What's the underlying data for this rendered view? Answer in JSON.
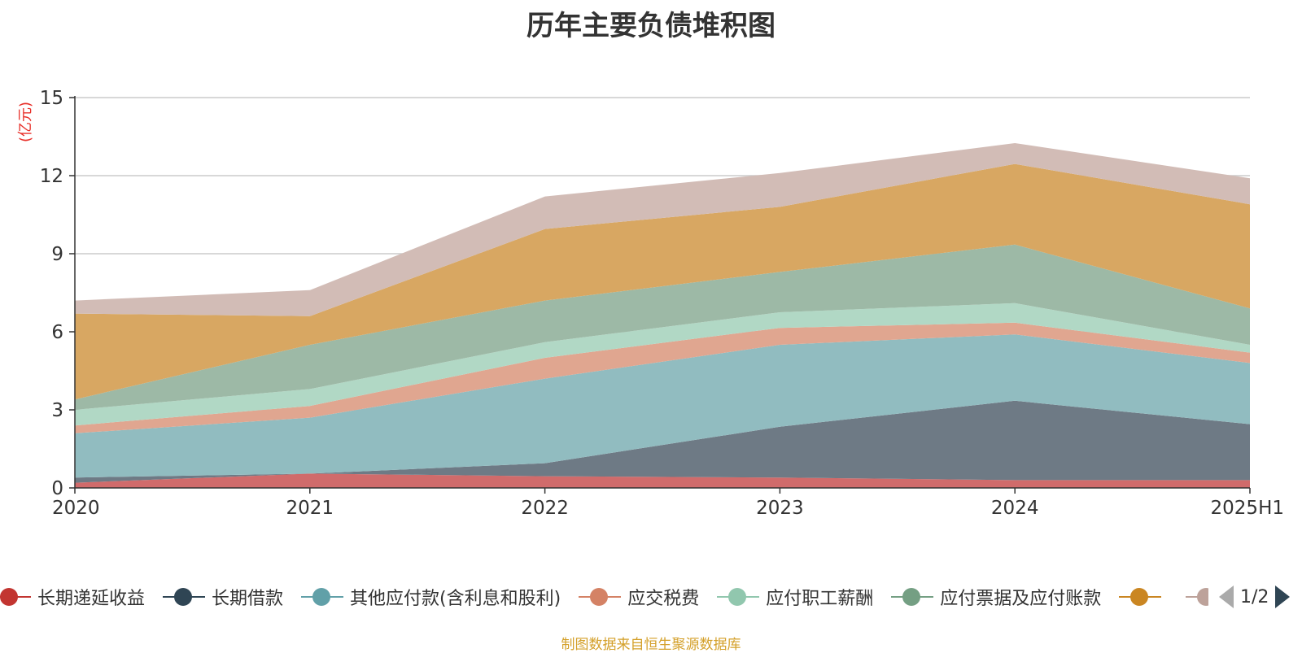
{
  "chart_data": {
    "type": "area",
    "stacked": true,
    "title": "历年主要负债堆积图",
    "ylabel": "(亿元)",
    "xlabel": "",
    "categories": [
      "2020",
      "2021",
      "2022",
      "2023",
      "2024",
      "2025H1"
    ],
    "ylim": [
      0,
      15
    ],
    "yticks": [
      0,
      3,
      6,
      9,
      12,
      15
    ],
    "grid": true,
    "legend_position": "bottom",
    "series": [
      {
        "name": "长期递延收益",
        "color": "#c23531",
        "fill": "#d06b6b",
        "values": [
          0.2,
          0.55,
          0.45,
          0.4,
          0.3,
          0.3
        ]
      },
      {
        "name": "长期借款",
        "color": "#2f4554",
        "fill": "#6e7a85",
        "values": [
          0.2,
          0.0,
          0.5,
          1.95,
          3.05,
          2.15
        ]
      },
      {
        "name": "其他应付款(含利息和股利)",
        "color": "#61a0a8",
        "fill": "#91bcc0",
        "values": [
          1.7,
          2.15,
          3.25,
          3.15,
          2.55,
          2.35
        ]
      },
      {
        "name": "应交税费",
        "color": "#d48265",
        "fill": "#e0a690",
        "values": [
          0.3,
          0.45,
          0.8,
          0.65,
          0.45,
          0.4
        ]
      },
      {
        "name": "应付职工薪酬",
        "color": "#91c7ae",
        "fill": "#b1d8c5",
        "values": [
          0.6,
          0.65,
          0.6,
          0.6,
          0.75,
          0.3
        ]
      },
      {
        "name": "应付票据及应付账款",
        "color": "#749f83",
        "fill": "#9db9a6",
        "values": [
          0.4,
          1.7,
          1.6,
          1.55,
          2.25,
          1.4
        ]
      },
      {
        "color": "#ca8622",
        "fill": "#d8a762",
        "values": [
          3.3,
          1.1,
          2.75,
          2.5,
          3.1,
          4.0
        ]
      },
      {
        "color": "#bda29a",
        "fill": "#d2bcb6",
        "values": [
          0.5,
          1.0,
          1.25,
          1.3,
          0.8,
          1.0
        ]
      }
    ]
  },
  "legend": {
    "visible_items": [
      "长期递延收益",
      "长期借款",
      "其他应付款(含利息和股利)",
      "应交税费",
      "应付职工薪酬",
      "应付票据及应付账款"
    ],
    "page": "1/2"
  },
  "footer": {
    "source": "制图数据来自恒生聚源数据库"
  }
}
